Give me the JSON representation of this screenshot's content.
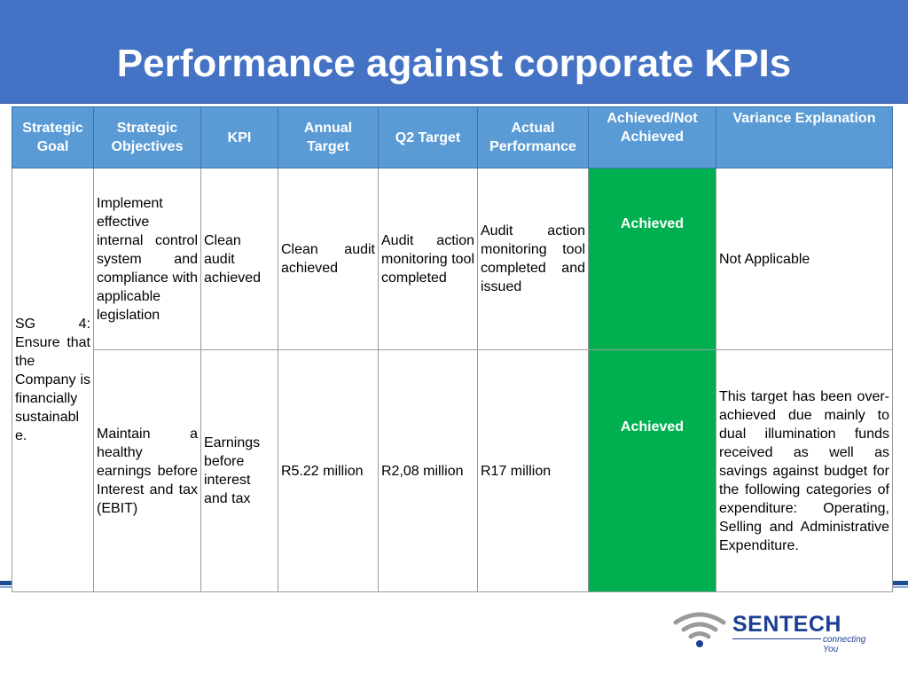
{
  "slide": {
    "title": "Performance against corporate KPIs"
  },
  "table": {
    "headers": [
      "Strategic Goal",
      "Strategic Objectives",
      "KPI",
      "Annual Target",
      "Q2 Target",
      "Actual Performance",
      "Achieved/Not Achieved",
      "Variance Explanation"
    ],
    "goal": "SG 4: Ensure that the Company is financially sustainabl e.",
    "rows": [
      {
        "objective": "Implement effective internal control system and compliance with applicable legislation",
        "kpi": "Clean audit achieved",
        "annual_target": "Clean audit achieved",
        "q2_target": "Audit action monitoring tool completed",
        "actual": "Audit action monitoring tool completed and issued",
        "status": "Achieved",
        "variance": "Not Applicable"
      },
      {
        "objective": "Maintain a healthy earnings before Interest and tax (EBIT)",
        "kpi": "Earnings before interest and tax",
        "annual_target": "R5.22 million",
        "q2_target": "R2,08 million",
        "actual": "R17 million",
        "status": "Achieved",
        "variance": "This target has been over-achieved due mainly to dual illumination funds received as well as savings against budget for the following categories of expenditure: Operating, Selling and Administrative Expenditure."
      }
    ]
  },
  "logo": {
    "name": "SENTECH",
    "tagline": "connecting You",
    "icon": "wifi-signal-icon"
  },
  "colors": {
    "header": "#4472c4",
    "table_header": "#5b9bd5",
    "achieved": "#00b050",
    "brand": "#1c3f94"
  }
}
